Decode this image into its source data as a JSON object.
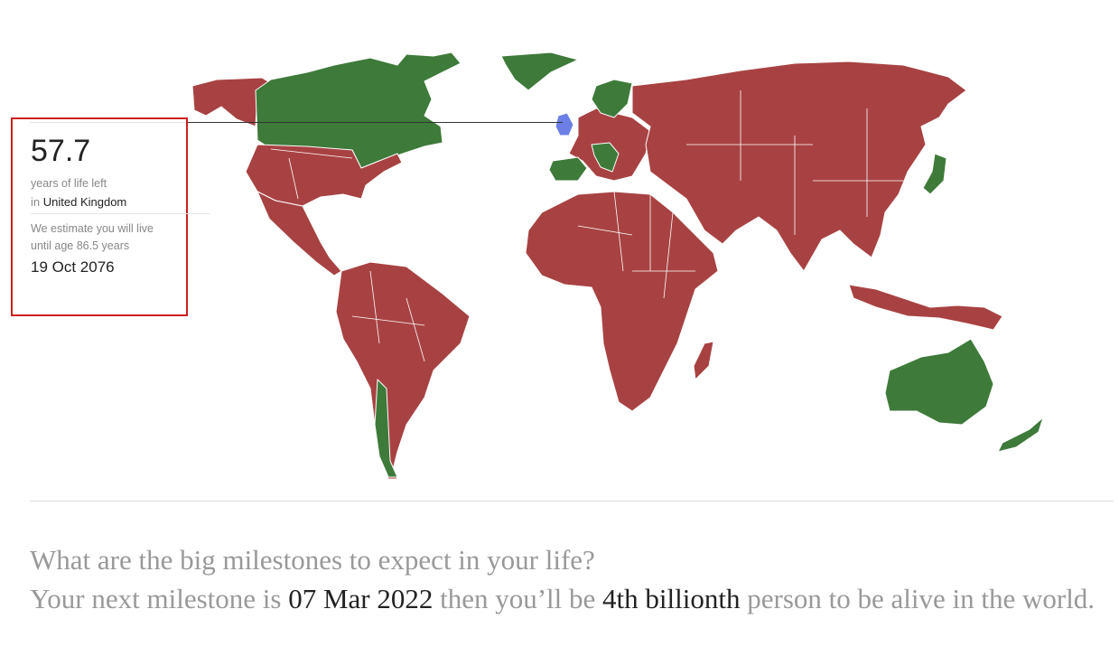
{
  "map": {
    "colors": {
      "ocean": "#ffffff",
      "red": "#a84242",
      "green": "#3e7a3a",
      "blue": "#6b7fe6",
      "border": "#ffffff"
    }
  },
  "card": {
    "years_left": "57.7",
    "years_left_label": "years of life left",
    "in_prefix": "in",
    "country": "United Kingdom",
    "estimate_line1": "We estimate you will live",
    "estimate_line2": "until age 86.5 years",
    "death_date": "19 Oct 2076"
  },
  "milestones": {
    "question": "What are the big milestones to expect in your life?",
    "next_prefix": "Your next milestone is",
    "next_date": "07 Mar 2022",
    "then_text": "then you’ll be",
    "ordinal": "4th billionth",
    "suffix": "person to be alive in the world."
  }
}
